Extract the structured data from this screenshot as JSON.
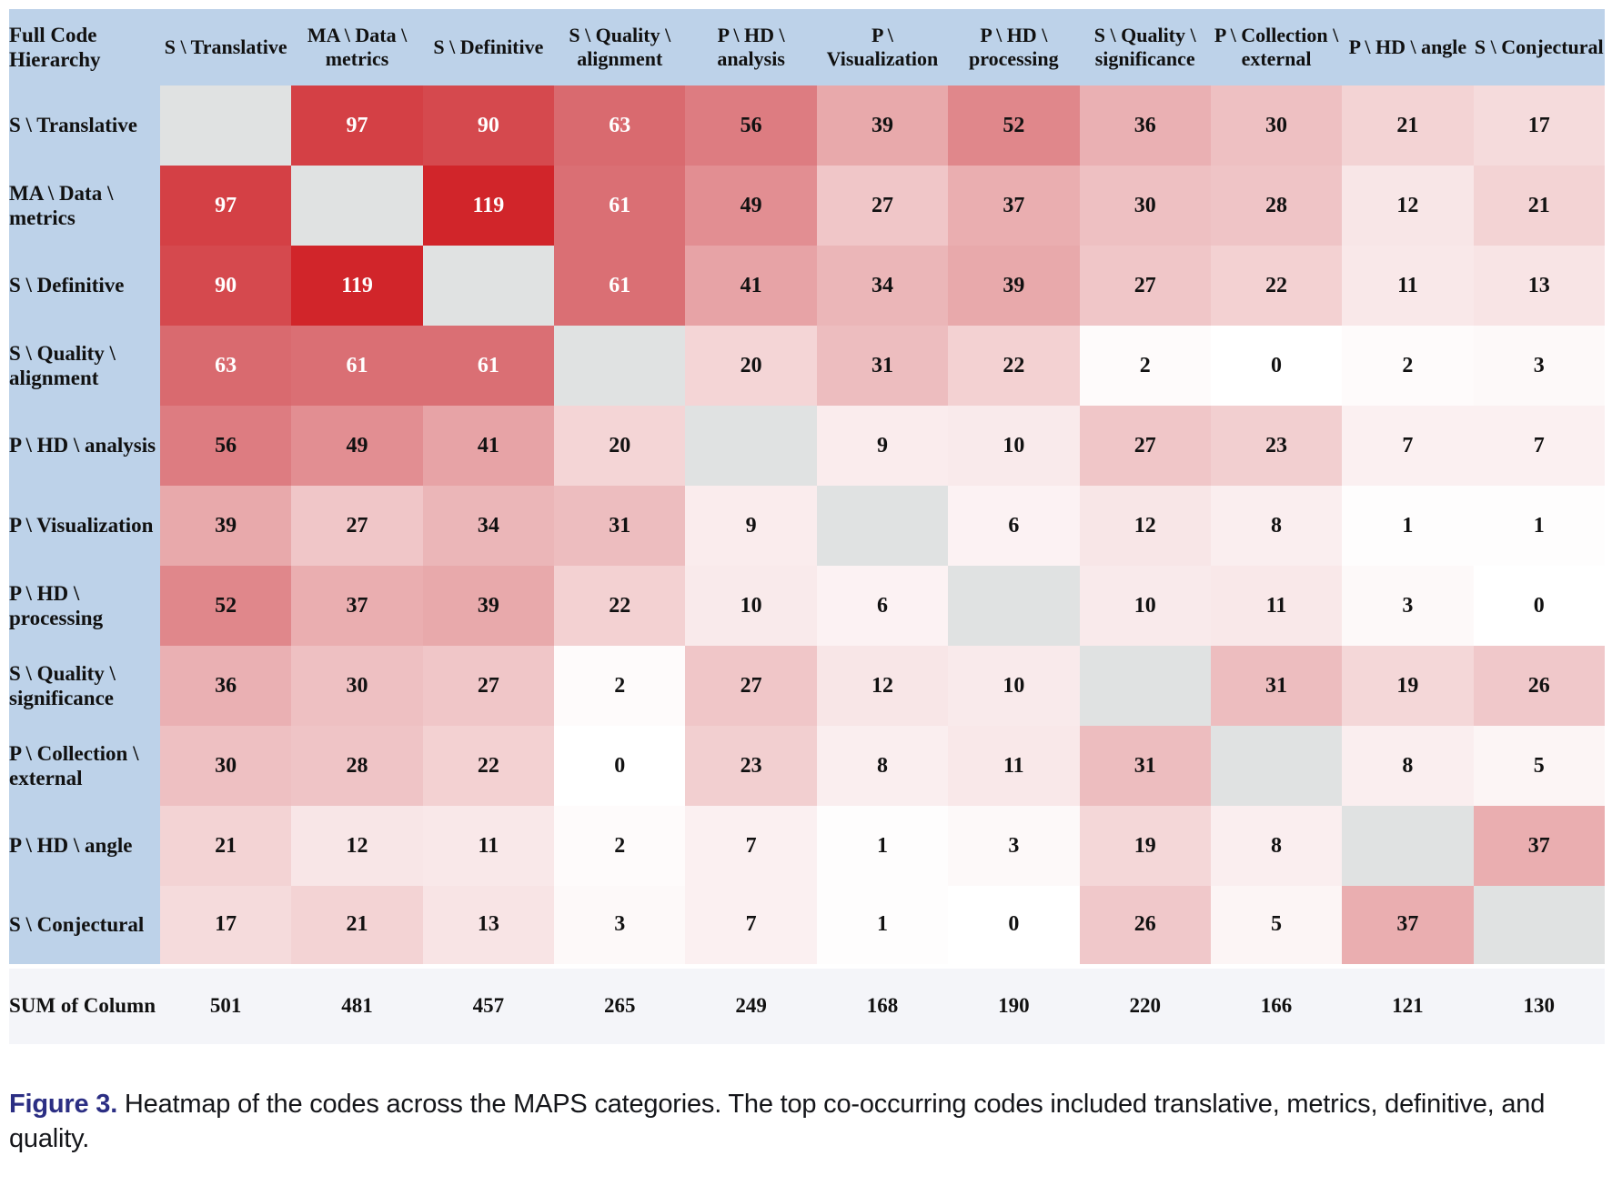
{
  "chart_data": {
    "type": "heatmap",
    "title": "Heatmap of the codes across the MAPS categories",
    "corner_label": "Full Code Hierarchy",
    "categories": [
      "S \\ Translative",
      "MA \\ Data \\ metrics",
      "S \\ Definitive",
      "S \\ Quality \\ alignment",
      "P \\ HD \\ analysis",
      "P \\ Visualization",
      "P \\ HD \\ processing",
      "S \\ Quality \\ significance",
      "P \\ Collection \\ external",
      "P \\ HD \\ angle",
      "S \\ Conjectural"
    ],
    "matrix": [
      [
        null,
        97,
        90,
        63,
        56,
        39,
        52,
        36,
        30,
        21,
        17
      ],
      [
        97,
        null,
        119,
        61,
        49,
        27,
        37,
        30,
        28,
        12,
        21
      ],
      [
        90,
        119,
        null,
        61,
        41,
        34,
        39,
        27,
        22,
        11,
        13
      ],
      [
        63,
        61,
        61,
        null,
        20,
        31,
        22,
        2,
        0,
        2,
        3
      ],
      [
        56,
        49,
        41,
        20,
        null,
        9,
        10,
        27,
        23,
        7,
        7
      ],
      [
        39,
        27,
        34,
        31,
        9,
        null,
        6,
        12,
        8,
        1,
        1
      ],
      [
        52,
        37,
        39,
        22,
        10,
        6,
        null,
        10,
        11,
        3,
        0
      ],
      [
        36,
        30,
        27,
        2,
        27,
        12,
        10,
        null,
        31,
        19,
        26
      ],
      [
        30,
        28,
        22,
        0,
        23,
        8,
        11,
        31,
        null,
        8,
        5
      ],
      [
        21,
        12,
        11,
        2,
        7,
        1,
        3,
        19,
        8,
        null,
        37
      ],
      [
        17,
        21,
        13,
        3,
        7,
        1,
        0,
        26,
        5,
        37,
        null
      ]
    ],
    "sum_row_label": "SUM of Column",
    "column_sums": [
      501,
      481,
      457,
      265,
      249,
      168,
      190,
      220,
      166,
      121,
      130
    ],
    "value_range": [
      0,
      119
    ],
    "legend": "none",
    "colorscale": {
      "anchors": [
        [
          0,
          "#ffffff"
        ],
        [
          30,
          "#eec0c2"
        ],
        [
          63,
          "#d96a6f"
        ],
        [
          119,
          "#d1252a"
        ]
      ],
      "white_text_min": 60
    }
  },
  "colors": {
    "header_bg": "#bdd2e9",
    "diagonal": "#e0e2e2",
    "sum_bg": "#f4f5f9",
    "caption_accent": "#2b2e83"
  },
  "caption": {
    "prefix": "Figure 3.",
    "text": " Heatmap of the codes across the MAPS categories. The top co-occurring codes included translative, metrics, definitive, and quality."
  }
}
